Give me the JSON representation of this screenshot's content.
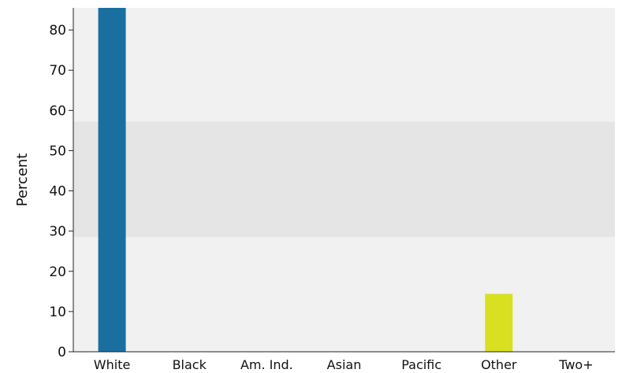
{
  "chart_data": {
    "type": "bar",
    "categories": [
      "White",
      "Black",
      "Am. Ind.",
      "Asian",
      "Pacific",
      "Other",
      "Two+"
    ],
    "values": [
      85.5,
      0,
      0,
      0,
      0,
      14.4,
      0
    ],
    "bar_colors": [
      "#1a6fa0",
      "#1a6fa0",
      "#1a6fa0",
      "#1a6fa0",
      "#1a6fa0",
      "#d9e021",
      "#1a6fa0"
    ],
    "xlabel": "",
    "ylabel": "Percent",
    "ylim": [
      0,
      85.5
    ],
    "yticks": [
      0,
      10,
      20,
      30,
      40,
      50,
      60,
      70,
      80
    ],
    "band": {
      "from": 28.5,
      "to": 57.2,
      "color": "#e5e5e5"
    },
    "plot_background": "#f1f1f1",
    "grid": false
  }
}
